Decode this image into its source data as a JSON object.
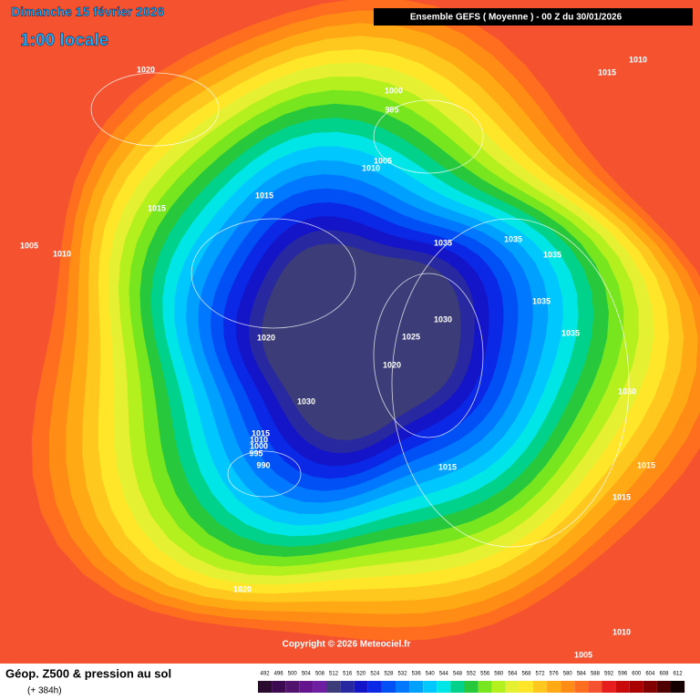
{
  "header": {
    "date": "Dimanche 15 février 2026",
    "time": "1:00 locale",
    "model": "Ensemble GEFS  ( Moyenne )  -  00 Z du 30/01/2026"
  },
  "isobar_labels": [
    1020,
    1015,
    1010,
    1000,
    995,
    1005,
    1010,
    1015,
    1015,
    1005,
    1010,
    1035,
    1035,
    1035,
    1035,
    1030,
    1025,
    1035,
    1020,
    1020,
    1030,
    1030,
    1015,
    1010,
    1000,
    995,
    990,
    1015,
    1015,
    1015,
    1020,
    1010,
    1005
  ],
  "copyright": "Copyright © 2026 Meteociel.fr",
  "footer": {
    "title": "Géop. Z500 & pression au sol",
    "lead": "(+ 384h)"
  },
  "legend": {
    "values": [
      492,
      496,
      500,
      504,
      508,
      512,
      516,
      520,
      524,
      528,
      532,
      536,
      540,
      544,
      548,
      552,
      556,
      560,
      564,
      568,
      572,
      576,
      580,
      584,
      588,
      592,
      596,
      600,
      604,
      608,
      612
    ],
    "colors": [
      "#2a0a2e",
      "#3c0a50",
      "#50146e",
      "#64148c",
      "#6e1ea0",
      "#3c3c78",
      "#2828a0",
      "#1414c8",
      "#0a28e6",
      "#0050f5",
      "#0078ff",
      "#00a0ff",
      "#00c8ff",
      "#00e6e6",
      "#00d28c",
      "#28c83c",
      "#78e61e",
      "#b4f01e",
      "#e6f032",
      "#ffe628",
      "#ffc81e",
      "#ffaa14",
      "#ff8c14",
      "#ff6e1e",
      "#f5522f",
      "#e61e1e",
      "#c80a0a",
      "#aa0000",
      "#820000",
      "#500000",
      "#140000"
    ]
  }
}
